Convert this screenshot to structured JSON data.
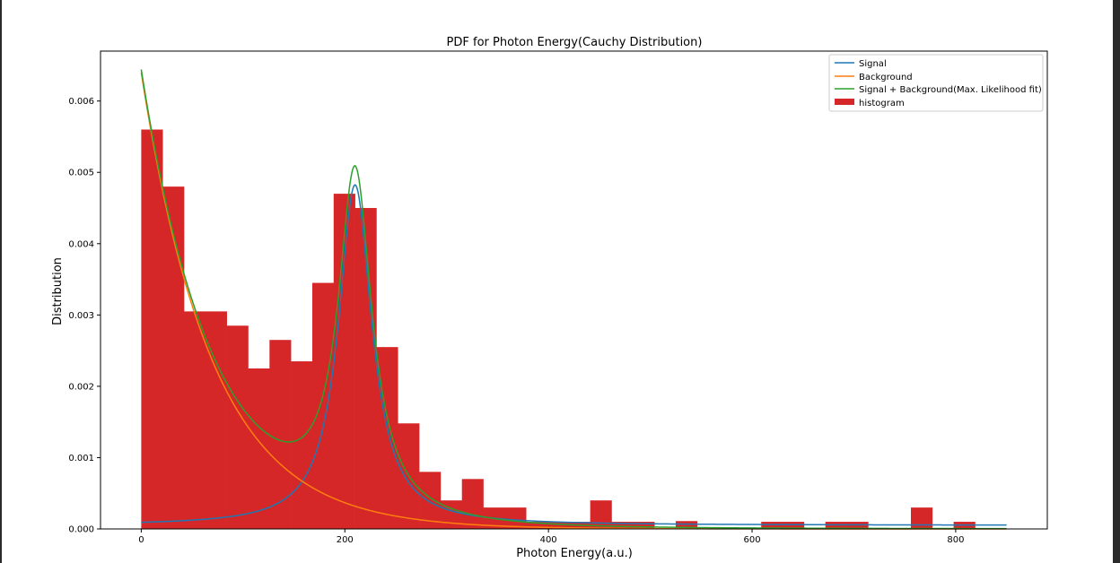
{
  "chart_data": {
    "type": "histogram+line",
    "title": "PDF for Photon Energy(Cauchy Distribution)",
    "xlabel": "Photon Energy(a.u.)",
    "ylabel": "Distribution",
    "xlim": [
      -40,
      890
    ],
    "ylim": [
      0,
      0.0067
    ],
    "xticks": [
      0,
      200,
      400,
      600,
      800
    ],
    "xtick_labels": [
      "0",
      "200",
      "400",
      "600",
      "800"
    ],
    "yticks": [
      0.0,
      0.001,
      0.002,
      0.003,
      0.004,
      0.005,
      0.006
    ],
    "ytick_labels": [
      "0.000",
      "0.001",
      "0.002",
      "0.003",
      "0.004",
      "0.005",
      "0.006"
    ],
    "legend": {
      "position": "top-right",
      "entries": [
        {
          "label": "Signal",
          "color": "#1f77b4",
          "kind": "line"
        },
        {
          "label": "Background",
          "color": "#ff7f0e",
          "kind": "line"
        },
        {
          "label": "Signal + Background(Max. Likelihood fit)",
          "color": "#2ca02c",
          "kind": "line"
        },
        {
          "label": "histogram",
          "color": "#d62728",
          "kind": "patch"
        }
      ]
    },
    "histogram": {
      "name": "histogram",
      "color": "#d62728",
      "bin_width": 21,
      "bin_start": 0,
      "values": [
        0.0056,
        0.0048,
        0.00305,
        0.00305,
        0.00285,
        0.00225,
        0.00265,
        0.00235,
        0.00345,
        0.0047,
        0.0045,
        0.00255,
        0.00148,
        0.0008,
        0.0004,
        0.0007,
        0.0003,
        0.0003,
        0.0001,
        0.0001,
        0.0001,
        0.0004,
        0.0001,
        0.0001,
        0.0,
        0.00011,
        0.0,
        0.0,
        0.0,
        0.0001,
        0.0001,
        0.0,
        0.0001,
        0.0001,
        0.0,
        0.0,
        0.0003,
        0.0,
        0.0001
      ]
    },
    "series": [
      {
        "name": "Signal",
        "color": "#1f77b4",
        "model": "cauchy",
        "x0": 210,
        "gamma": 20,
        "scale": 0.3,
        "x_range": [
          0,
          850
        ]
      },
      {
        "name": "Background",
        "color": "#ff7f0e",
        "model": "exponential",
        "a": 0.0064,
        "tau": 70,
        "x_range": [
          0,
          850
        ]
      },
      {
        "name": "Signal + Background(Max. Likelihood fit)",
        "color": "#2ca02c",
        "model": "sum",
        "signal": {
          "x0": 210,
          "gamma": 20,
          "scale": 0.3
        },
        "background": {
          "a": 0.0064,
          "tau": 70
        },
        "fit_scale": 1.0,
        "x_range": [
          0,
          850
        ]
      }
    ]
  }
}
